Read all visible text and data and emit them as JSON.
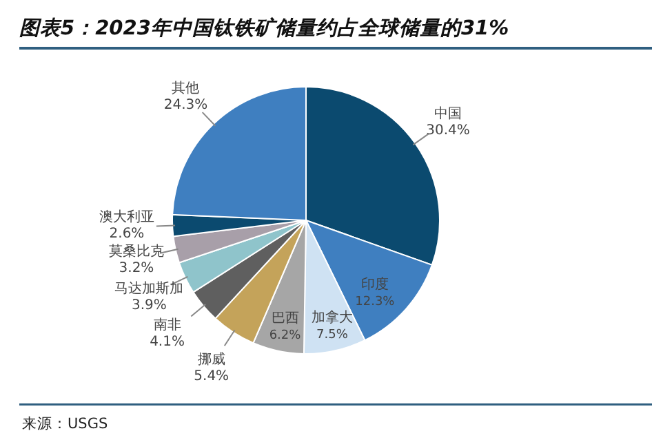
{
  "chart_data": {
    "type": "pie",
    "title": "图表5：2023年中国钛铁矿储量约占全球储量的31%",
    "categories": [
      "中国",
      "印度",
      "加拿大",
      "巴西",
      "挪威",
      "南非",
      "马达加斯加",
      "莫桑比克",
      "澳大利亚",
      "其他"
    ],
    "values": [
      30.4,
      12.3,
      7.5,
      6.2,
      5.4,
      4.1,
      3.9,
      3.2,
      2.6,
      24.3
    ],
    "colors": [
      "#0b4a6f",
      "#3f7fc0",
      "#cfe2f3",
      "#a6a6a6",
      "#c4a35a",
      "#5f5f5f",
      "#8fc4cb",
      "#a89fa9",
      "#0b4a6f",
      "#3f7fc0"
    ],
    "value_labels": [
      "30.4%",
      "12.3%",
      "7.5%",
      "6.2%",
      "5.4%",
      "4.1%",
      "3.9%",
      "3.2%",
      "2.6%",
      "24.3%"
    ],
    "annotations": [
      "来源：USGS"
    ]
  }
}
